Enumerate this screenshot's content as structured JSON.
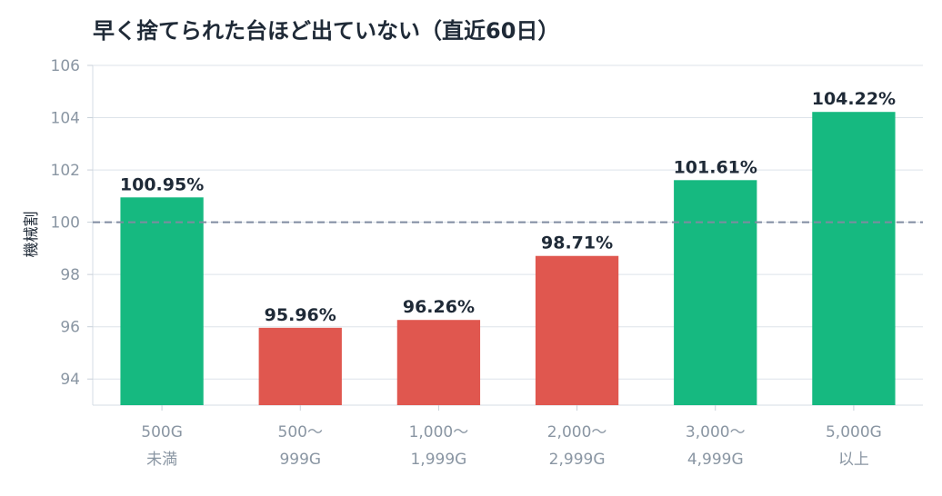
{
  "chart_data": {
    "type": "bar",
    "title": "早く捨てられた台ほど出ていない（直近60日）",
    "xlabel": "",
    "ylabel": "機械割",
    "categories": [
      [
        "500G",
        "未満"
      ],
      [
        "500〜",
        "999G"
      ],
      [
        "1,000〜",
        "1,999G"
      ],
      [
        "2,000〜",
        "2,999G"
      ],
      [
        "3,000〜",
        "4,999G"
      ],
      [
        "5,000G",
        "以上"
      ]
    ],
    "values": [
      100.95,
      95.96,
      96.26,
      98.71,
      101.61,
      104.22
    ],
    "value_labels": [
      "100.95%",
      "95.96%",
      "96.26%",
      "98.71%",
      "101.61%",
      "104.22%"
    ],
    "ylim": [
      93,
      106
    ],
    "yticks": [
      94,
      96,
      98,
      100,
      102,
      104,
      106
    ],
    "reference_line": 100,
    "grid": true,
    "colors": {
      "above": "#16b980",
      "below": "#e0574f",
      "reference": "#7f8ba0",
      "grid": "#dde3ea"
    }
  }
}
